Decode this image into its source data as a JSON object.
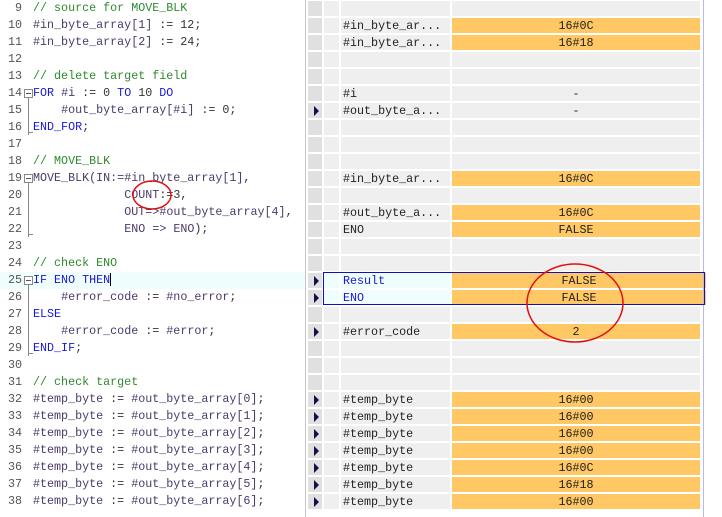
{
  "editor": {
    "lines": [
      {
        "n": "9",
        "indent": 0,
        "segs": [
          [
            "// source for MOVE_BLK",
            "comment"
          ]
        ]
      },
      {
        "n": "10",
        "indent": 0,
        "segs": [
          [
            "#in_byte_array[1]",
            "var"
          ],
          [
            " := ",
            "op"
          ],
          [
            "12",
            "num"
          ],
          [
            ";",
            "op"
          ]
        ]
      },
      {
        "n": "11",
        "indent": 0,
        "segs": [
          [
            "#in_byte_array[2]",
            "var"
          ],
          [
            " := ",
            "op"
          ],
          [
            "24",
            "num"
          ],
          [
            ";",
            "op"
          ]
        ]
      },
      {
        "n": "12",
        "indent": 0,
        "segs": []
      },
      {
        "n": "13",
        "indent": 0,
        "segs": [
          [
            "// delete target field",
            "comment"
          ]
        ]
      },
      {
        "n": "14",
        "indent": 0,
        "fold": true,
        "segs": [
          [
            "FOR ",
            "kw"
          ],
          [
            "#i",
            "var"
          ],
          [
            " := ",
            "op"
          ],
          [
            "0",
            "num"
          ],
          [
            " TO ",
            "kw"
          ],
          [
            "10",
            "num"
          ],
          [
            " DO",
            "kw"
          ]
        ]
      },
      {
        "n": "15",
        "indent": 4,
        "segs": [
          [
            "#out_byte_array[#i]",
            "var"
          ],
          [
            " := ",
            "op"
          ],
          [
            "0",
            "num"
          ],
          [
            ";",
            "op"
          ]
        ]
      },
      {
        "n": "16",
        "indent": 0,
        "segs": [
          [
            "END_FOR",
            "kw"
          ],
          [
            ";",
            "op"
          ]
        ]
      },
      {
        "n": "17",
        "indent": 0,
        "segs": []
      },
      {
        "n": "18",
        "indent": 0,
        "segs": [
          [
            "// MOVE_BLK",
            "comment"
          ]
        ]
      },
      {
        "n": "19",
        "indent": 0,
        "fold": true,
        "segs": [
          [
            "MOVE_BLK",
            "var"
          ],
          [
            "(IN:=",
            "var"
          ],
          [
            "#in_byte_array[1]",
            "var"
          ],
          [
            ",",
            "op"
          ]
        ]
      },
      {
        "n": "20",
        "indent": 13,
        "segs": [
          [
            "COUNT",
            "var"
          ],
          [
            ":=",
            "op"
          ],
          [
            "3",
            "num"
          ],
          [
            ",",
            "op"
          ]
        ]
      },
      {
        "n": "21",
        "indent": 13,
        "segs": [
          [
            "OUT=>",
            "var"
          ],
          [
            "#out_byte_array[4]",
            "var"
          ],
          [
            ",",
            "op"
          ]
        ]
      },
      {
        "n": "22",
        "indent": 13,
        "segs": [
          [
            "ENO => ENO",
            "var"
          ],
          [
            ");",
            "op"
          ]
        ]
      },
      {
        "n": "23",
        "indent": 0,
        "segs": []
      },
      {
        "n": "24",
        "indent": 0,
        "segs": [
          [
            "// check ENO",
            "comment"
          ]
        ]
      },
      {
        "n": "25",
        "indent": 0,
        "fold": true,
        "highlight": true,
        "segs": [
          [
            "IF ",
            "kw"
          ],
          [
            "ENO",
            "kw"
          ],
          [
            " THEN",
            "kw"
          ]
        ]
      },
      {
        "n": "26",
        "indent": 4,
        "segs": [
          [
            "#error_code",
            "var"
          ],
          [
            " := ",
            "op"
          ],
          [
            "#no_error",
            "var"
          ],
          [
            ";",
            "op"
          ]
        ]
      },
      {
        "n": "27",
        "indent": 0,
        "segs": [
          [
            "ELSE",
            "kw"
          ]
        ]
      },
      {
        "n": "28",
        "indent": 4,
        "segs": [
          [
            "#error_code",
            "var"
          ],
          [
            " := ",
            "op"
          ],
          [
            "#error",
            "var"
          ],
          [
            ";",
            "op"
          ]
        ]
      },
      {
        "n": "29",
        "indent": 0,
        "segs": [
          [
            "END_IF",
            "kw"
          ],
          [
            ";",
            "op"
          ]
        ]
      },
      {
        "n": "30",
        "indent": 0,
        "segs": []
      },
      {
        "n": "31",
        "indent": 0,
        "segs": [
          [
            "// check target",
            "comment"
          ]
        ]
      },
      {
        "n": "32",
        "indent": 0,
        "segs": [
          [
            "#temp_byte",
            "var"
          ],
          [
            " := ",
            "op"
          ],
          [
            "#out_byte_array[0]",
            "var"
          ],
          [
            ";",
            "op"
          ]
        ]
      },
      {
        "n": "33",
        "indent": 0,
        "segs": [
          [
            "#temp_byte",
            "var"
          ],
          [
            " := ",
            "op"
          ],
          [
            "#out_byte_array[1]",
            "var"
          ],
          [
            ";",
            "op"
          ]
        ]
      },
      {
        "n": "34",
        "indent": 0,
        "segs": [
          [
            "#temp_byte",
            "var"
          ],
          [
            " := ",
            "op"
          ],
          [
            "#out_byte_array[2]",
            "var"
          ],
          [
            ";",
            "op"
          ]
        ]
      },
      {
        "n": "35",
        "indent": 0,
        "segs": [
          [
            "#temp_byte",
            "var"
          ],
          [
            " := ",
            "op"
          ],
          [
            "#out_byte_array[3]",
            "var"
          ],
          [
            ";",
            "op"
          ]
        ]
      },
      {
        "n": "36",
        "indent": 0,
        "segs": [
          [
            "#temp_byte",
            "var"
          ],
          [
            " := ",
            "op"
          ],
          [
            "#out_byte_array[4]",
            "var"
          ],
          [
            ";",
            "op"
          ]
        ]
      },
      {
        "n": "37",
        "indent": 0,
        "segs": [
          [
            "#temp_byte",
            "var"
          ],
          [
            " := ",
            "op"
          ],
          [
            "#out_byte_array[5]",
            "var"
          ],
          [
            ";",
            "op"
          ]
        ]
      },
      {
        "n": "38",
        "indent": 0,
        "segs": [
          [
            "#temp_byte",
            "var"
          ],
          [
            " := ",
            "op"
          ],
          [
            "#out_byte_array[6]",
            "var"
          ],
          [
            ";",
            "op"
          ]
        ]
      }
    ]
  },
  "monitor": {
    "rows": [
      {},
      {
        "name": "#in_byte_ar...",
        "value": "16#0C",
        "orange": true
      },
      {
        "name": "#in_byte_ar...",
        "value": "16#18",
        "orange": true
      },
      {},
      {},
      {
        "name": "#i",
        "value": "-"
      },
      {
        "arrow": true,
        "name": "#out_byte_a...",
        "value": "-"
      },
      {},
      {},
      {},
      {
        "name": "#in_byte_ar...",
        "value": "16#0C",
        "orange": true
      },
      {},
      {
        "name": "#out_byte_a...",
        "value": "16#0C",
        "orange": true
      },
      {
        "name": "ENO",
        "value": "FALSE",
        "orange": true
      },
      {},
      {},
      {
        "arrow": true,
        "name": "Result",
        "value": "FALSE",
        "orange": true,
        "highlight": true
      },
      {
        "arrow": true,
        "name": "ENO",
        "value": "FALSE",
        "orange": true,
        "highlight": true
      },
      {},
      {
        "arrow": true,
        "name": "#error_code",
        "value": "2",
        "orange": true
      },
      {},
      {},
      {},
      {
        "arrow": true,
        "name": "#temp_byte",
        "value": "16#00",
        "orange": true
      },
      {
        "arrow": true,
        "name": "#temp_byte",
        "value": "16#00",
        "orange": true
      },
      {
        "arrow": true,
        "name": "#temp_byte",
        "value": "16#00",
        "orange": true
      },
      {
        "arrow": true,
        "name": "#temp_byte",
        "value": "16#00",
        "orange": true
      },
      {
        "arrow": true,
        "name": "#temp_byte",
        "value": "16#0C",
        "orange": true
      },
      {
        "arrow": true,
        "name": "#temp_byte",
        "value": "16#18",
        "orange": true
      },
      {
        "arrow": true,
        "name": "#temp_byte",
        "value": "16#00",
        "orange": true
      }
    ]
  },
  "colors": {
    "value_bg": "#ffc864",
    "annotation": "#e01010",
    "highlight_border": "#1010c0"
  }
}
